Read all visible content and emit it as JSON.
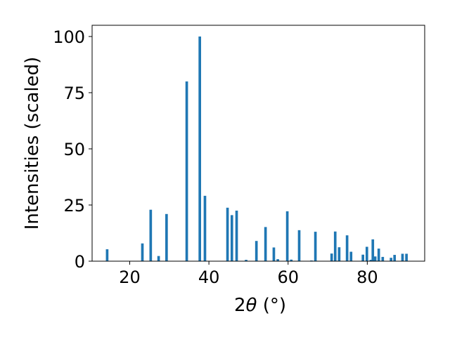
{
  "chart_data": {
    "type": "bar",
    "xlabel_prefix": "2",
    "xlabel_symbol": "θ",
    "xlabel_suffix": " (°)",
    "ylabel": "Intensities (scaled)",
    "xlim": [
      10.5,
      94.5
    ],
    "ylim": [
      0,
      105
    ],
    "bar_width": 0.65,
    "grid": false,
    "bar_color": "#1f77b4",
    "x_ticks": [
      20,
      40,
      60,
      80
    ],
    "y_ticks": [
      0,
      25,
      50,
      75,
      100
    ],
    "x": [
      14.3,
      23.2,
      25.3,
      27.3,
      29.3,
      34.4,
      37.7,
      39.0,
      44.7,
      45.8,
      47.0,
      49.4,
      52.0,
      54.3,
      56.4,
      57.4,
      59.8,
      60.8,
      62.8,
      65.9,
      66.9,
      71.0,
      71.9,
      72.9,
      74.9,
      75.9,
      78.9,
      79.9,
      80.9,
      81.4,
      82.0,
      82.9,
      83.9,
      86.0,
      86.9,
      88.9,
      89.9
    ],
    "values": [
      5.3,
      7.9,
      22.9,
      2.3,
      21.0,
      80.0,
      100.0,
      29.1,
      23.8,
      20.5,
      22.5,
      0.6,
      9.0,
      15.2,
      6.1,
      0.9,
      22.2,
      0.7,
      13.8,
      0.3,
      13.1,
      3.4,
      13.2,
      6.2,
      11.5,
      4.2,
      2.9,
      6.4,
      0.6,
      9.7,
      2.1,
      5.6,
      1.9,
      1.5,
      2.8,
      3.3,
      3.3
    ]
  }
}
